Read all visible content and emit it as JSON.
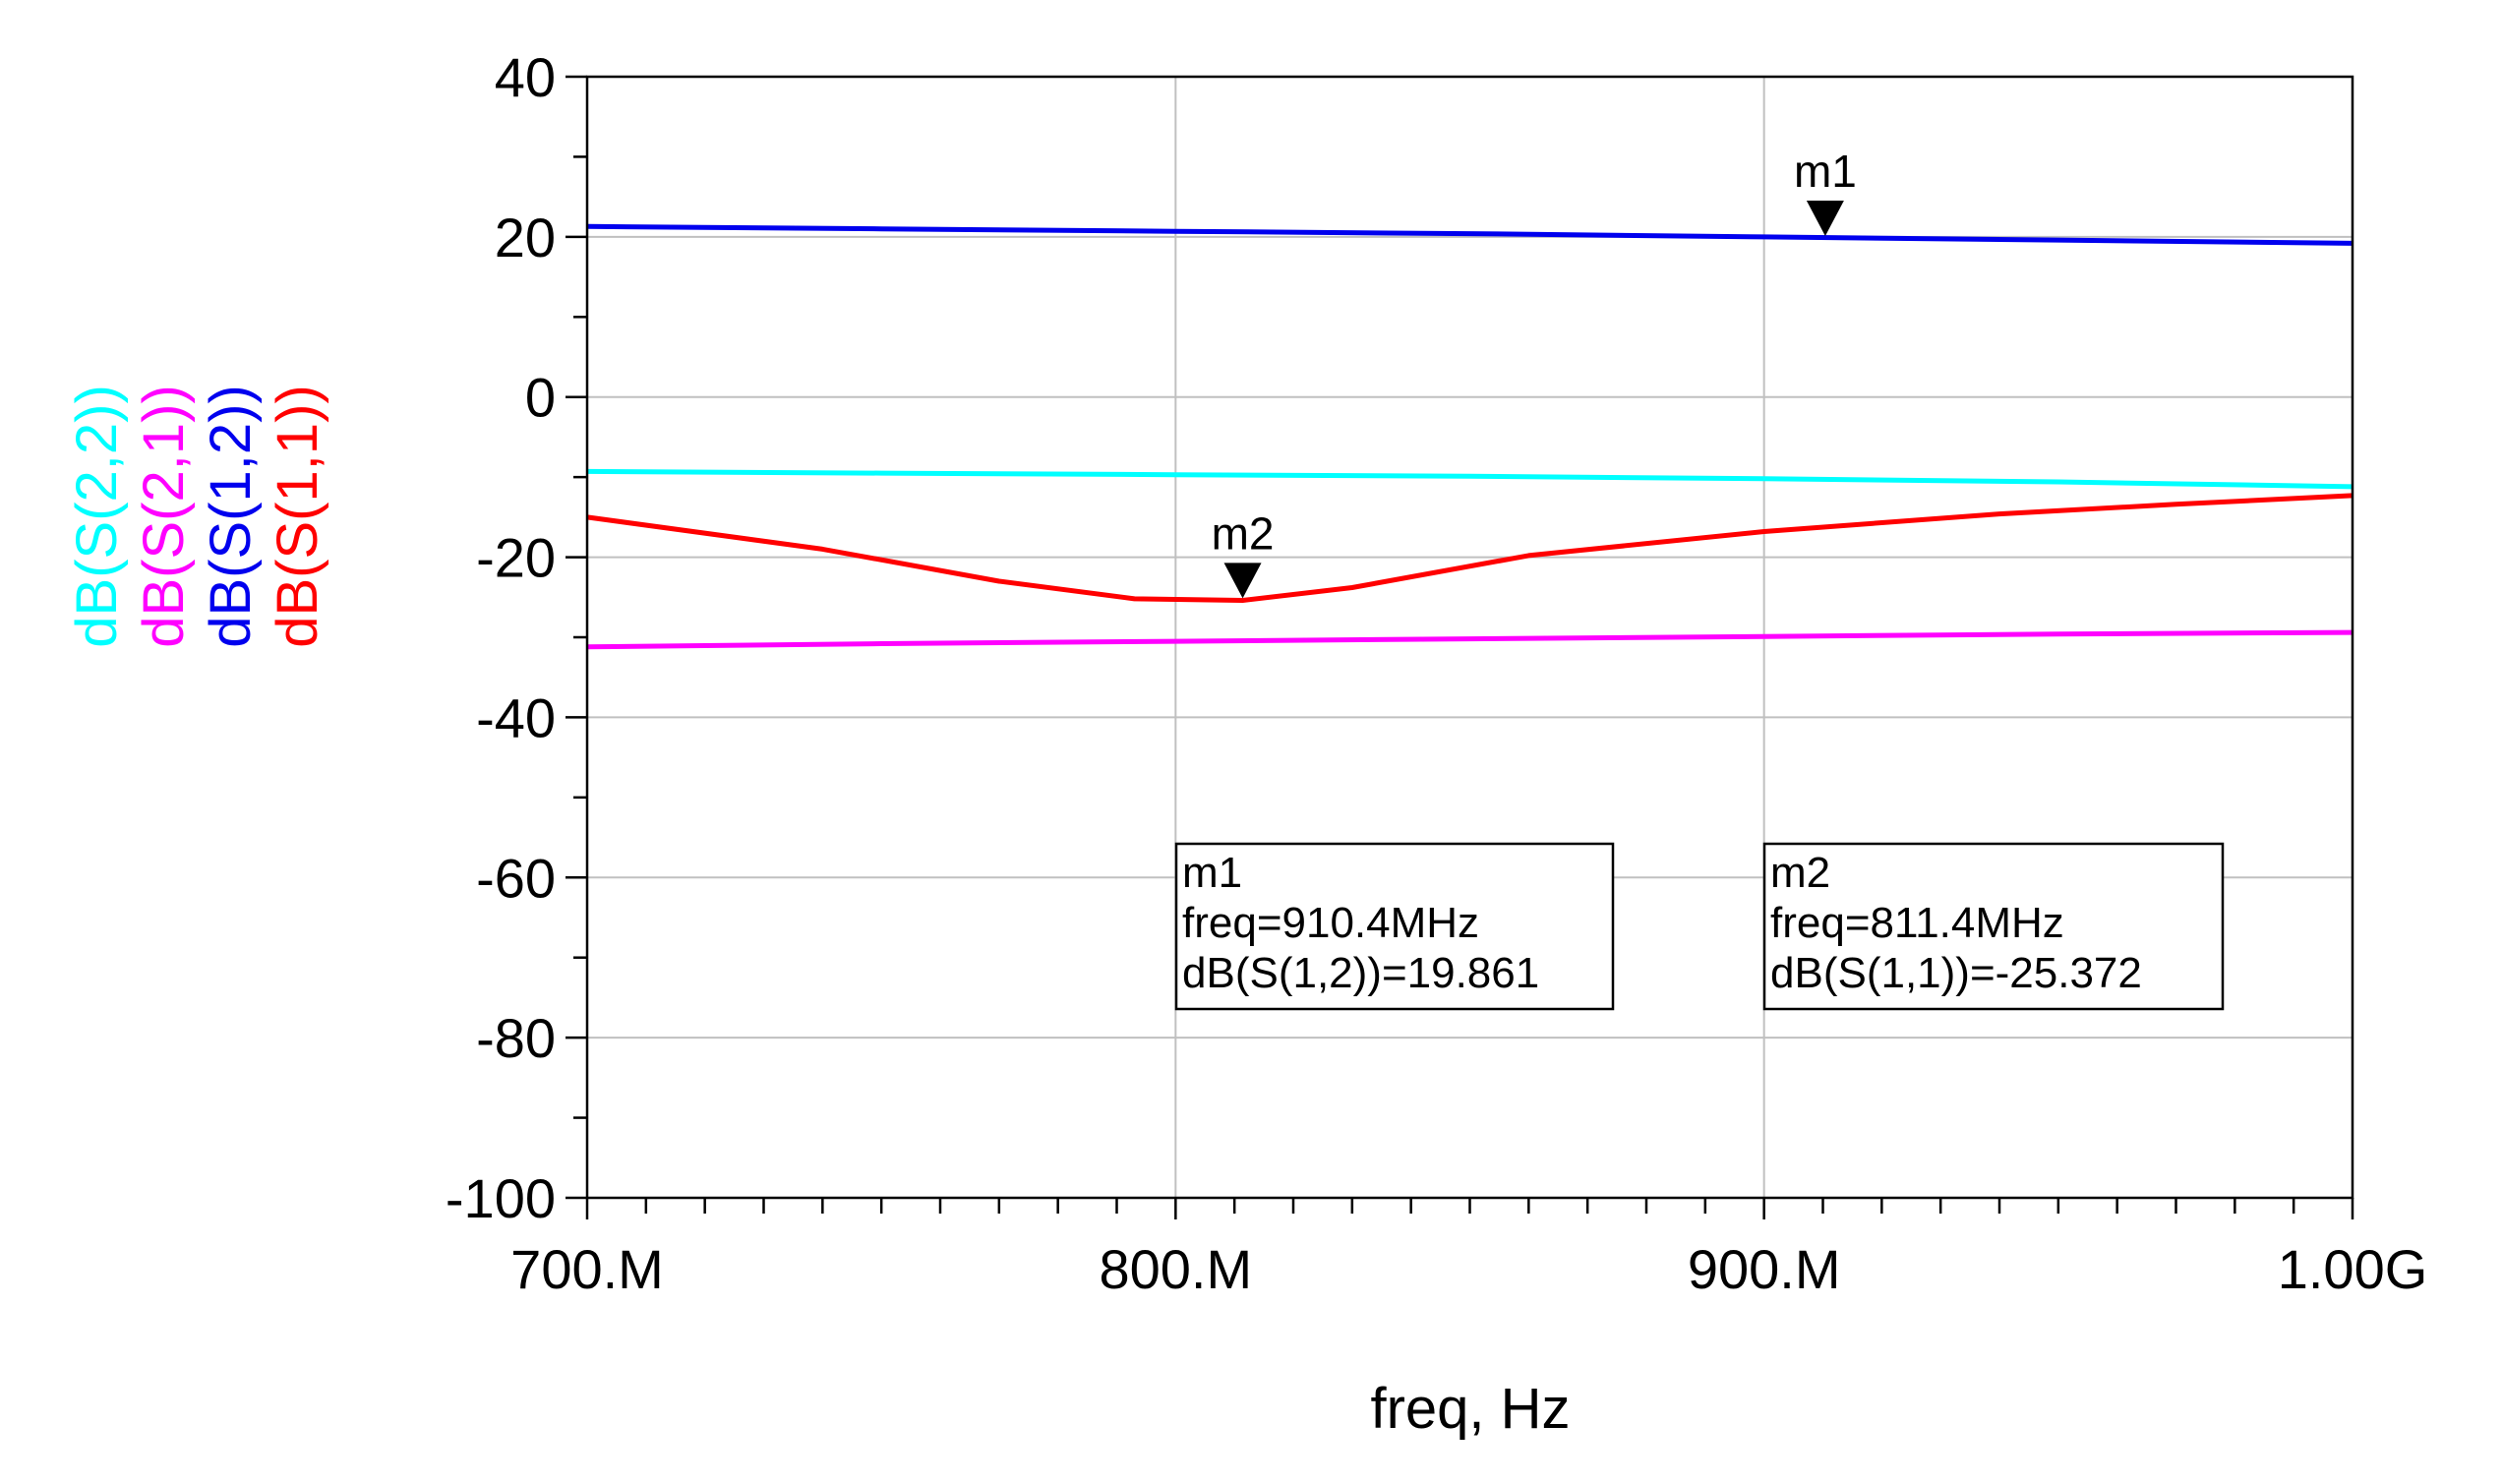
{
  "chart_data": {
    "type": "line",
    "xlabel": "freq, Hz",
    "x_ticks": [
      "700.M",
      "800.M",
      "900.M",
      "1.00G"
    ],
    "y_ticks": [
      "40",
      "20",
      "0",
      "-20",
      "-40",
      "-60",
      "-80",
      "-100"
    ],
    "xlim": [
      700,
      1000
    ],
    "x_unit": "MHz",
    "ylim": [
      -100,
      40
    ],
    "grid": true,
    "legend_placement": "left, vertical",
    "series": [
      {
        "name": "dB(S(2,2))",
        "color": "#00ffff",
        "x": [
          700,
          750,
          800,
          850,
          900,
          950,
          1000
        ],
        "y": [
          -9.3,
          -9.5,
          -9.7,
          -9.9,
          -10.2,
          -10.6,
          -11.2
        ]
      },
      {
        "name": "dB(S(2,1))",
        "color": "#ff00ff",
        "x": [
          700,
          750,
          800,
          850,
          900,
          950,
          1000
        ],
        "y": [
          -31.2,
          -30.8,
          -30.5,
          -30.2,
          -29.9,
          -29.6,
          -29.4
        ]
      },
      {
        "name": "dB(S(1,2))",
        "color": "#0000ee",
        "x": [
          700,
          750,
          800,
          850,
          900,
          950,
          1000
        ],
        "y": [
          21.3,
          21.0,
          20.7,
          20.4,
          20.0,
          19.6,
          19.2
        ]
      },
      {
        "name": "dB(S(1,1))",
        "color": "#ff0000",
        "x": [
          700,
          740,
          770,
          793,
          811.4,
          830,
          860,
          900,
          940,
          970,
          1000
        ],
        "y": [
          -15.0,
          -19.0,
          -23.0,
          -25.2,
          -25.4,
          -23.8,
          -19.8,
          -16.8,
          -14.6,
          -13.4,
          -12.3
        ]
      }
    ],
    "markers": [
      {
        "label": "m1",
        "x": 910.4,
        "y": 19.861,
        "readout": [
          "m1",
          "freq=910.4MHz",
          "dB(S(1,2))=19.861"
        ]
      },
      {
        "label": "m2",
        "x": 811.4,
        "y": -25.372,
        "readout": [
          "m2",
          "freq=811.4MHz",
          "dB(S(1,1))=-25.372"
        ]
      }
    ]
  }
}
